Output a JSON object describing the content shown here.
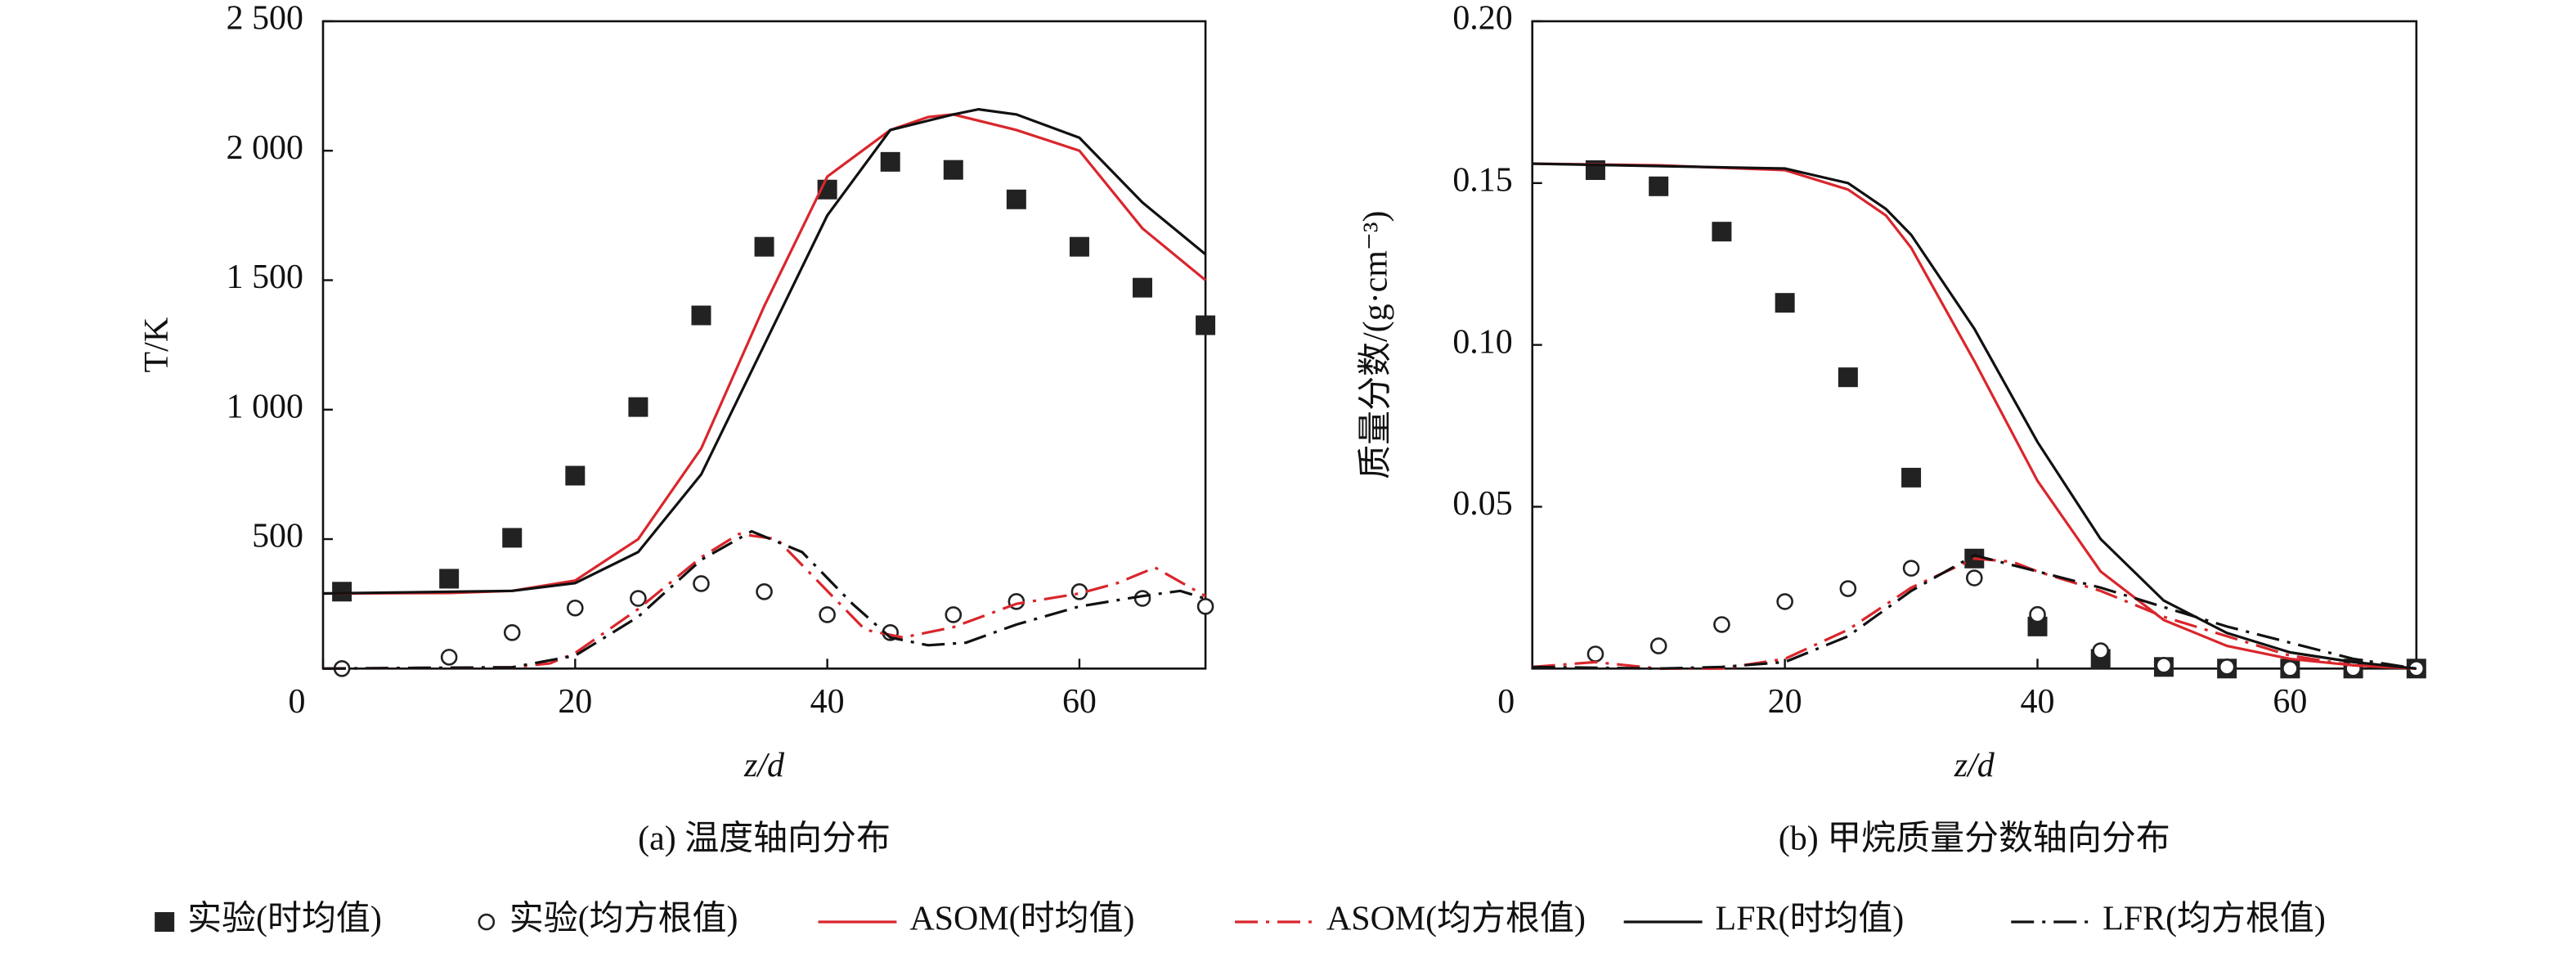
{
  "chart_data": [
    {
      "type": "line",
      "x_label": "z/d",
      "y_label": "T/K",
      "caption": "(a) 温度轴向分布",
      "xlim": [
        0,
        70
      ],
      "ylim": [
        0,
        2500
      ],
      "xticks": [
        0,
        20,
        40,
        60
      ],
      "yticks": [
        500,
        {
          "value": 1000,
          "label": "1 000"
        },
        {
          "value": 1500,
          "label": "1 500"
        },
        {
          "value": 2000,
          "label": "2 000"
        },
        {
          "value": 2500,
          "label": "2 500"
        }
      ],
      "series": [
        {
          "name": "实验(时均值)",
          "style": "square",
          "color": "#222222",
          "x": [
            1.5,
            10,
            15,
            20,
            25,
            30,
            35,
            40,
            45,
            50,
            55,
            60,
            65,
            70
          ],
          "values": [
            297,
            347,
            505,
            745,
            1010,
            1364,
            1629,
            1850,
            1957,
            1926,
            1812,
            1629,
            1471,
            1326
          ]
        },
        {
          "name": "实验(均方根值)",
          "style": "circle",
          "color": "#222222",
          "x": [
            1.5,
            10,
            15,
            20,
            25,
            30,
            35,
            40,
            45,
            50,
            55,
            60,
            65,
            70
          ],
          "values": [
            0,
            44,
            139,
            234,
            271,
            328,
            297,
            208,
            139,
            208,
            259,
            297,
            271,
            240
          ]
        },
        {
          "name": "ASOM(时均值)",
          "style": "solid",
          "color": "#d9262c",
          "x": [
            0,
            10,
            15,
            20,
            25,
            30,
            35,
            40,
            45,
            48,
            50,
            55,
            60,
            65,
            70
          ],
          "values": [
            290,
            292,
            300,
            340,
            500,
            850,
            1400,
            1900,
            2080,
            2130,
            2140,
            2080,
            2000,
            1700,
            1500
          ]
        },
        {
          "name": "ASOM(均方根值)",
          "style": "dashdot",
          "color": "#d9262c",
          "x": [
            0,
            15,
            18,
            20,
            25,
            30,
            33,
            36,
            40,
            43,
            46,
            50,
            55,
            60,
            63,
            66,
            70
          ],
          "values": [
            0,
            5,
            20,
            60,
            230,
            430,
            520,
            500,
            300,
            150,
            120,
            160,
            250,
            290,
            330,
            390,
            280
          ]
        },
        {
          "name": "LFR(时均值)",
          "style": "solid",
          "color": "#111111",
          "x": [
            0,
            15,
            20,
            25,
            30,
            35,
            40,
            45,
            50,
            52,
            55,
            60,
            65,
            70
          ],
          "values": [
            290,
            300,
            330,
            450,
            750,
            1250,
            1750,
            2080,
            2140,
            2160,
            2140,
            2050,
            1800,
            1600
          ]
        },
        {
          "name": "LFR(均方根值)",
          "style": "dashdot",
          "color": "#111111",
          "x": [
            0,
            15,
            20,
            25,
            30,
            34,
            38,
            42,
            45,
            48,
            51,
            55,
            60,
            65,
            68,
            70
          ],
          "values": [
            0,
            5,
            50,
            200,
            420,
            530,
            450,
            250,
            120,
            90,
            100,
            170,
            240,
            280,
            300,
            270
          ]
        }
      ]
    },
    {
      "type": "line",
      "x_label": "z/d",
      "y_label": "质量分数/(g·cm⁻³)",
      "caption": "(b) 甲烷质量分数轴向分布",
      "xlim": [
        0,
        70
      ],
      "ylim": [
        0,
        0.2
      ],
      "xticks": [
        0,
        20,
        40,
        60
      ],
      "yticks": [
        0.05,
        {
          "value": 0.1,
          "label": "0.10"
        },
        0.15,
        {
          "value": 0.2,
          "label": "0.20"
        }
      ],
      "series": [
        {
          "style": "square",
          "color": "#222222",
          "x": [
            5,
            10,
            15,
            20,
            25,
            30,
            35,
            40,
            45,
            50,
            55,
            60,
            65,
            70
          ],
          "values": [
            0.154,
            0.149,
            0.135,
            0.113,
            0.09,
            0.059,
            0.034,
            0.013,
            0.003,
            0.0005,
            0,
            0,
            0,
            0
          ]
        },
        {
          "style": "circle",
          "color": "#222222",
          "x": [
            5,
            10,
            15,
            20,
            25,
            30,
            35,
            40,
            45,
            50,
            55,
            60,
            65,
            70
          ],
          "values": [
            0.0045,
            0.007,
            0.0136,
            0.0207,
            0.0247,
            0.031,
            0.028,
            0.0167,
            0.0055,
            0.001,
            0.0005,
            0,
            0,
            0
          ]
        },
        {
          "style": "solid",
          "color": "#d9262c",
          "x": [
            0,
            10,
            20,
            25,
            28,
            30,
            35,
            40,
            45,
            50,
            55,
            60,
            65,
            70
          ],
          "values": [
            0.156,
            0.1555,
            0.154,
            0.148,
            0.14,
            0.13,
            0.095,
            0.058,
            0.03,
            0.015,
            0.007,
            0.003,
            0.001,
            0
          ]
        },
        {
          "style": "dashdot",
          "color": "#d9262c",
          "x": [
            0,
            5,
            10,
            15,
            20,
            25,
            30,
            35,
            38,
            40,
            45,
            50,
            55,
            60,
            65,
            70
          ],
          "values": [
            0.0005,
            0.002,
            0,
            0,
            0.003,
            0.012,
            0.025,
            0.034,
            0.033,
            0.03,
            0.024,
            0.016,
            0.01,
            0.004,
            0.001,
            0
          ]
        },
        {
          "style": "solid",
          "color": "#111111",
          "x": [
            0,
            20,
            25,
            28,
            30,
            35,
            40,
            45,
            50,
            55,
            60,
            65,
            70
          ],
          "values": [
            0.156,
            0.1545,
            0.15,
            0.142,
            0.134,
            0.105,
            0.07,
            0.04,
            0.021,
            0.011,
            0.005,
            0.002,
            0
          ]
        },
        {
          "style": "dashdot",
          "color": "#111111",
          "x": [
            0,
            10,
            15,
            20,
            25,
            30,
            35,
            40,
            45,
            50,
            55,
            60,
            65,
            70
          ],
          "values": [
            0.0005,
            0,
            0.0005,
            0.002,
            0.01,
            0.024,
            0.035,
            0.03,
            0.025,
            0.019,
            0.013,
            0.008,
            0.003,
            0
          ]
        }
      ]
    }
  ]
}
